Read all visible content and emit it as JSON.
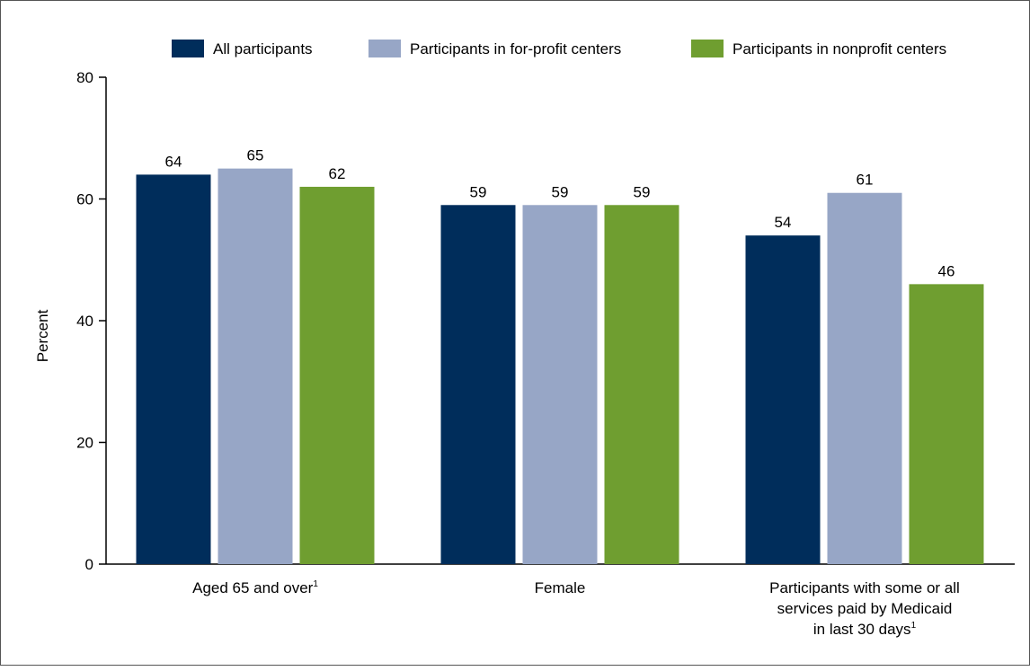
{
  "chart_data": {
    "type": "bar",
    "title": "",
    "xlabel": "",
    "ylabel": "Percent",
    "ylim": [
      0,
      80
    ],
    "yticks": [
      0,
      20,
      40,
      60,
      80
    ],
    "grid": false,
    "legend_position": "top",
    "categories": [
      {
        "lines": [
          "Aged 65 and over"
        ],
        "footnote": "1"
      },
      {
        "lines": [
          "Female"
        ],
        "footnote": ""
      },
      {
        "lines": [
          "Participants with some or all",
          "services paid by Medicaid",
          "in last 30 days"
        ],
        "footnote": "1"
      }
    ],
    "series": [
      {
        "name": "All participants",
        "color": "#002d5b",
        "values": [
          64,
          59,
          54
        ]
      },
      {
        "name": "Participants in for-profit centers",
        "color": "#97a6c6",
        "values": [
          65,
          59,
          61
        ]
      },
      {
        "name": "Participants in nonprofit centers",
        "color": "#6f9e30",
        "values": [
          62,
          59,
          46
        ]
      }
    ]
  }
}
